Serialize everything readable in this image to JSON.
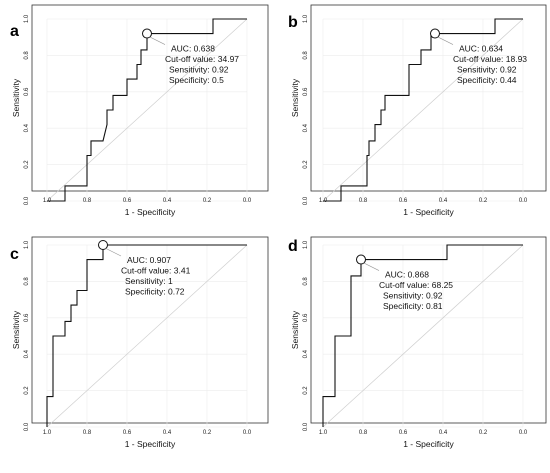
{
  "chart_data": [
    {
      "type": "line",
      "panel_label": "a",
      "xlabel": "1 - Specificity",
      "ylabel": "Sensitivity",
      "x_reversed": true,
      "xlim": [
        1.0,
        0.0
      ],
      "ylim": [
        0.0,
        1.0
      ],
      "x_ticks": [
        "1.0",
        "0.8",
        "0.6",
        "0.4",
        "0.2",
        "0.0"
      ],
      "y_ticks": [
        "0.0",
        "0.2",
        "0.4",
        "0.6",
        "0.8",
        "1.0"
      ],
      "grid": true,
      "reference_line": true,
      "roc_points": [
        [
          1.0,
          0.0
        ],
        [
          0.91,
          0.0
        ],
        [
          0.91,
          0.083
        ],
        [
          0.8,
          0.083
        ],
        [
          0.8,
          0.25
        ],
        [
          0.78,
          0.25
        ],
        [
          0.78,
          0.33
        ],
        [
          0.72,
          0.33
        ],
        [
          0.7,
          0.42
        ],
        [
          0.7,
          0.5
        ],
        [
          0.67,
          0.5
        ],
        [
          0.67,
          0.58
        ],
        [
          0.6,
          0.58
        ],
        [
          0.6,
          0.67
        ],
        [
          0.55,
          0.67
        ],
        [
          0.55,
          0.75
        ],
        [
          0.53,
          0.75
        ],
        [
          0.53,
          0.83
        ],
        [
          0.5,
          0.83
        ],
        [
          0.5,
          0.92
        ],
        [
          0.17,
          0.92
        ],
        [
          0.17,
          1.0
        ],
        [
          0.0,
          1.0
        ]
      ],
      "cutoff_point": [
        0.5,
        0.92
      ],
      "annotation": [
        "AUC: 0.638",
        "Cut-off value: 34.97",
        "Sensitivity: 0.92",
        "Specificity: 0.5"
      ]
    },
    {
      "type": "line",
      "panel_label": "b",
      "xlabel": "1 - Specificity",
      "ylabel": "Sensitivity",
      "x_reversed": true,
      "xlim": [
        1.0,
        0.0
      ],
      "ylim": [
        0.0,
        1.0
      ],
      "x_ticks": [
        "1.0",
        "0.8",
        "0.6",
        "0.4",
        "0.2",
        "0.0"
      ],
      "y_ticks": [
        "0.0",
        "0.2",
        "0.4",
        "0.6",
        "0.8",
        "1.0"
      ],
      "grid": true,
      "reference_line": true,
      "roc_points": [
        [
          1.0,
          0.0
        ],
        [
          0.91,
          0.0
        ],
        [
          0.91,
          0.083
        ],
        [
          0.78,
          0.083
        ],
        [
          0.78,
          0.25
        ],
        [
          0.77,
          0.25
        ],
        [
          0.77,
          0.33
        ],
        [
          0.74,
          0.33
        ],
        [
          0.74,
          0.42
        ],
        [
          0.71,
          0.42
        ],
        [
          0.71,
          0.5
        ],
        [
          0.69,
          0.5
        ],
        [
          0.69,
          0.58
        ],
        [
          0.57,
          0.58
        ],
        [
          0.57,
          0.75
        ],
        [
          0.51,
          0.75
        ],
        [
          0.51,
          0.83
        ],
        [
          0.46,
          0.83
        ],
        [
          0.46,
          0.92
        ],
        [
          0.14,
          0.92
        ],
        [
          0.14,
          1.0
        ],
        [
          0.0,
          1.0
        ]
      ],
      "cutoff_point": [
        0.44,
        0.92
      ],
      "annotation": [
        "AUC: 0.634",
        "Cut-off value: 18.93",
        "Sensitivity: 0.92",
        "Specificity: 0.44"
      ]
    },
    {
      "type": "line",
      "panel_label": "c",
      "xlabel": "1 - Specificity",
      "ylabel": "Sensitivity",
      "x_reversed": true,
      "xlim": [
        1.0,
        0.0
      ],
      "ylim": [
        0.0,
        1.0
      ],
      "x_ticks": [
        "1.0",
        "0.8",
        "0.6",
        "0.4",
        "0.2",
        "0.0"
      ],
      "y_ticks": [
        "0.0",
        "0.2",
        "0.4",
        "0.6",
        "0.8",
        "1.0"
      ],
      "grid": true,
      "reference_line": true,
      "roc_points": [
        [
          1.0,
          0.0
        ],
        [
          1.0,
          0.167
        ],
        [
          0.97,
          0.167
        ],
        [
          0.97,
          0.5
        ],
        [
          0.91,
          0.5
        ],
        [
          0.91,
          0.58
        ],
        [
          0.88,
          0.58
        ],
        [
          0.88,
          0.67
        ],
        [
          0.85,
          0.67
        ],
        [
          0.85,
          0.75
        ],
        [
          0.8,
          0.75
        ],
        [
          0.8,
          0.92
        ],
        [
          0.72,
          0.92
        ],
        [
          0.72,
          1.0
        ],
        [
          0.0,
          1.0
        ]
      ],
      "cutoff_point": [
        0.72,
        1.0
      ],
      "annotation": [
        "AUC: 0.907",
        "Cut-off value: 3.41",
        "Sensitivity: 1",
        "Specificity: 0.72"
      ]
    },
    {
      "type": "line",
      "panel_label": "d",
      "xlabel": "1 - Specificity",
      "ylabel": "Sensitivity",
      "x_reversed": true,
      "xlim": [
        1.0,
        0.0
      ],
      "ylim": [
        0.0,
        1.0
      ],
      "x_ticks": [
        "1.0",
        "0.8",
        "0.6",
        "0.4",
        "0.2",
        "0.0"
      ],
      "y_ticks": [
        "0.0",
        "0.2",
        "0.4",
        "0.6",
        "0.8",
        "1.0"
      ],
      "grid": true,
      "reference_line": true,
      "roc_points": [
        [
          1.0,
          0.0
        ],
        [
          1.0,
          0.167
        ],
        [
          0.94,
          0.167
        ],
        [
          0.94,
          0.5
        ],
        [
          0.86,
          0.5
        ],
        [
          0.86,
          0.83
        ],
        [
          0.81,
          0.83
        ],
        [
          0.81,
          0.92
        ],
        [
          0.38,
          0.92
        ],
        [
          0.38,
          1.0
        ],
        [
          0.0,
          1.0
        ]
      ],
      "cutoff_point": [
        0.81,
        0.92
      ],
      "annotation": [
        "AUC: 0.868",
        "Cut-off value: 68.25",
        "Sensitivity: 0.92",
        "Specificity: 0.81"
      ]
    }
  ]
}
